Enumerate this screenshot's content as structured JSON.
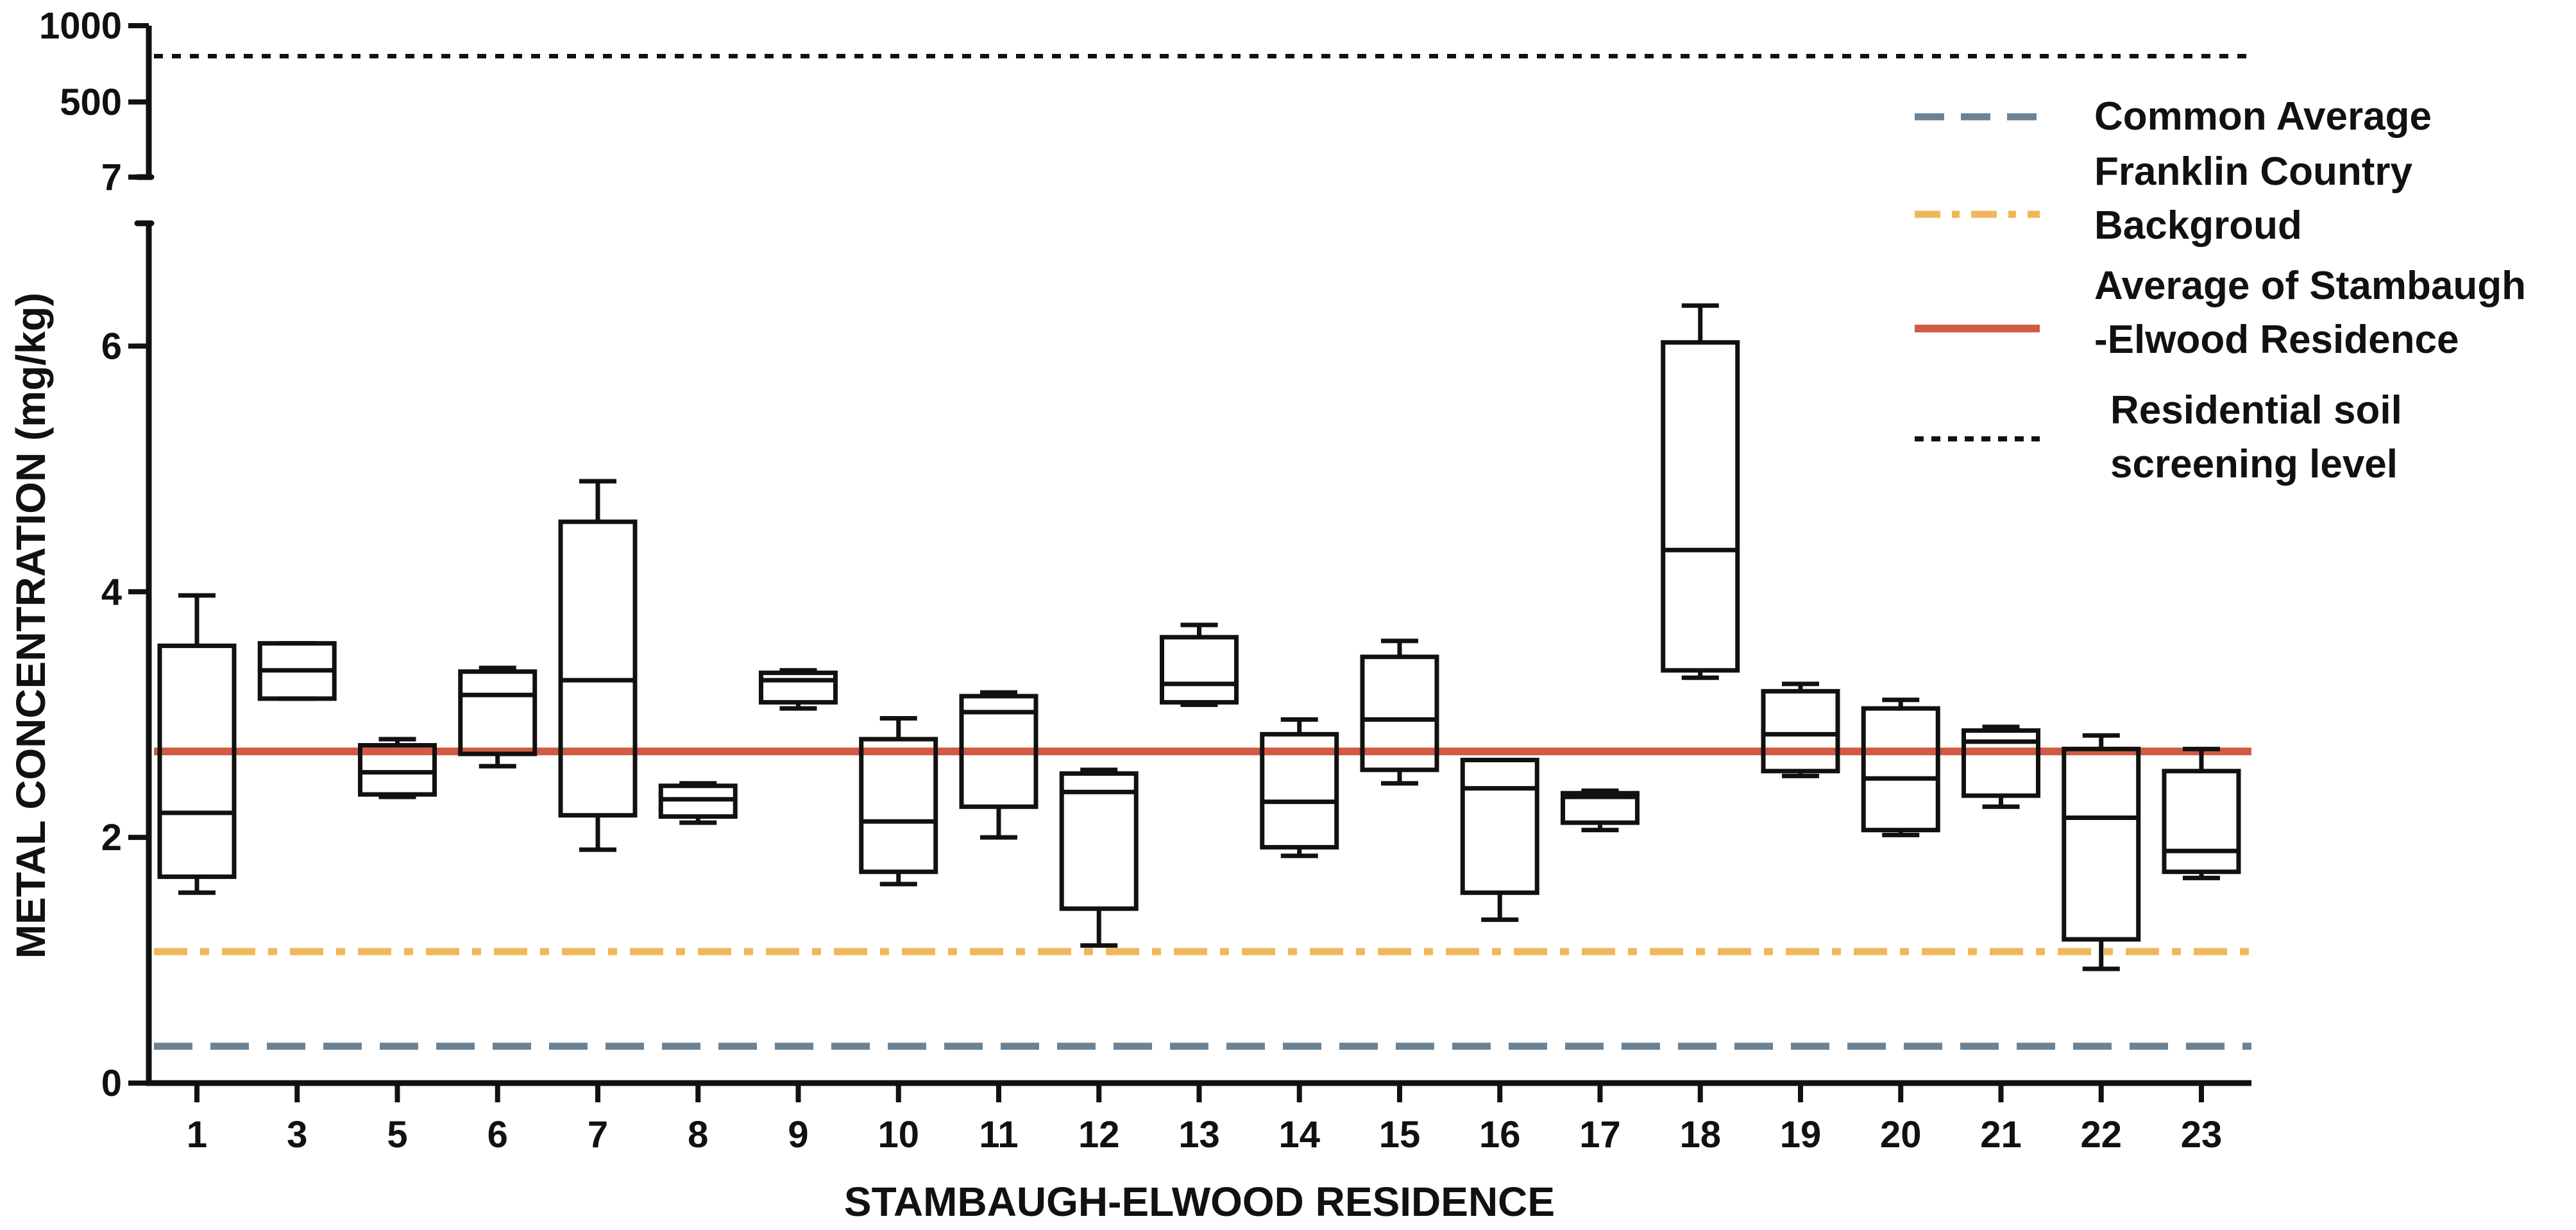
{
  "chart_data": {
    "type": "box",
    "xlabel": "STAMBAUGH-ELWOOD RESIDENCE",
    "ylabel": "METAL CONCENTRATION (mg/kg)",
    "categories": [
      "1",
      "3",
      "5",
      "6",
      "7",
      "8",
      "9",
      "10",
      "11",
      "12",
      "13",
      "14",
      "15",
      "16",
      "17",
      "18",
      "19",
      "20",
      "21",
      "22",
      "23"
    ],
    "boxes": [
      {
        "min": 1.55,
        "q1": 1.68,
        "median": 2.2,
        "q3": 3.56,
        "max": 3.97
      },
      {
        "min": 3.13,
        "q1": 3.13,
        "median": 3.36,
        "q3": 3.58,
        "max": 3.58
      },
      {
        "min": 2.33,
        "q1": 2.35,
        "median": 2.53,
        "q3": 2.75,
        "max": 2.8
      },
      {
        "min": 2.58,
        "q1": 2.68,
        "median": 3.16,
        "q3": 3.35,
        "max": 3.38
      },
      {
        "min": 1.9,
        "q1": 2.18,
        "median": 3.28,
        "q3": 4.57,
        "max": 4.9
      },
      {
        "min": 2.12,
        "q1": 2.17,
        "median": 2.31,
        "q3": 2.42,
        "max": 2.44
      },
      {
        "min": 3.05,
        "q1": 3.1,
        "median": 3.28,
        "q3": 3.34,
        "max": 3.36
      },
      {
        "min": 1.62,
        "q1": 1.72,
        "median": 2.13,
        "q3": 2.8,
        "max": 2.97
      },
      {
        "min": 2.0,
        "q1": 2.25,
        "median": 3.02,
        "q3": 3.15,
        "max": 3.18
      },
      {
        "min": 1.12,
        "q1": 1.42,
        "median": 2.37,
        "q3": 2.52,
        "max": 2.55
      },
      {
        "min": 3.08,
        "q1": 3.1,
        "median": 3.25,
        "q3": 3.63,
        "max": 3.73
      },
      {
        "min": 1.85,
        "q1": 1.92,
        "median": 2.29,
        "q3": 2.84,
        "max": 2.96
      },
      {
        "min": 2.44,
        "q1": 2.55,
        "median": 2.96,
        "q3": 3.47,
        "max": 3.6
      },
      {
        "min": 1.33,
        "q1": 1.55,
        "median": 2.4,
        "q3": 2.63,
        "max": 2.63
      },
      {
        "min": 2.06,
        "q1": 2.12,
        "median": 2.33,
        "q3": 2.36,
        "max": 2.38
      },
      {
        "min": 3.3,
        "q1": 3.36,
        "median": 4.34,
        "q3": 6.03,
        "max": 6.33
      },
      {
        "min": 2.5,
        "q1": 2.54,
        "median": 2.84,
        "q3": 3.19,
        "max": 3.25
      },
      {
        "min": 2.02,
        "q1": 2.06,
        "median": 2.48,
        "q3": 3.05,
        "max": 3.12
      },
      {
        "min": 2.25,
        "q1": 2.34,
        "median": 2.78,
        "q3": 2.87,
        "max": 2.9
      },
      {
        "min": 0.93,
        "q1": 1.17,
        "median": 2.16,
        "q3": 2.72,
        "max": 2.83
      },
      {
        "min": 1.67,
        "q1": 1.72,
        "median": 1.89,
        "q3": 2.54,
        "max": 2.72
      }
    ],
    "ylim_lower": [
      0,
      7
    ],
    "yticks_lower": [
      0,
      2,
      4,
      6
    ],
    "ylim_upper": [
      7,
      1000
    ],
    "yticks_upper": [
      "7",
      "500",
      "1000"
    ],
    "reference_lines": [
      {
        "name": "Common Average",
        "value": 0.3,
        "color": "#6c8395",
        "style": "dashed"
      },
      {
        "name": "Franklin Country Backgroud",
        "value": 1.07,
        "color": "#f0b75a",
        "style": "dash-dot"
      },
      {
        "name": "Average of Stambaugh -Elwood Residence",
        "value": 2.7,
        "color": "#d05b44",
        "style": "solid"
      },
      {
        "name": "Residential soil screening level",
        "value": 800,
        "color": "#111111",
        "style": "dotted"
      }
    ],
    "legend": [
      {
        "lines": [
          "Common Average"
        ]
      },
      {
        "lines": [
          "Franklin Country",
          "Backgroud"
        ]
      },
      {
        "lines": [
          "Average of Stambaugh",
          "-Elwood Residence"
        ]
      },
      {
        "lines": [
          "Residential soil",
          "screening level"
        ]
      }
    ]
  }
}
